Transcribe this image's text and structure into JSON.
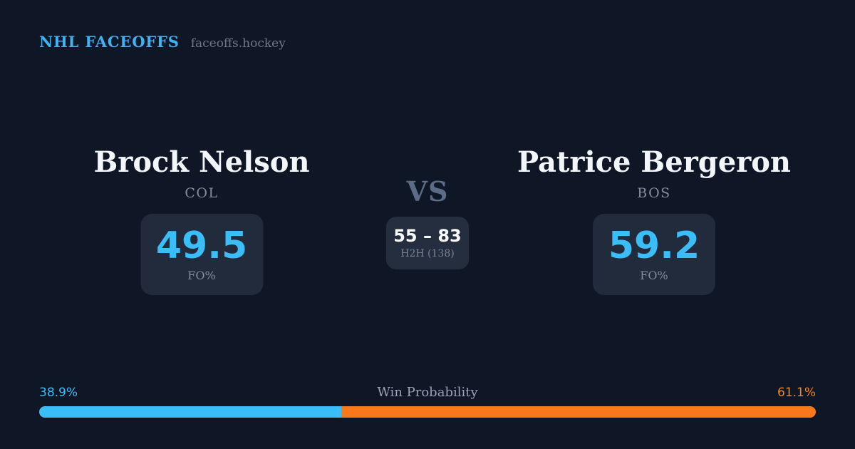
{
  "header": {
    "brand": "NHL FACEOFFS",
    "site": "faceoffs.hockey"
  },
  "players": {
    "left": {
      "name": "Brock Nelson",
      "team": "COL",
      "stat_value": "49.5",
      "stat_label": "FO%"
    },
    "right": {
      "name": "Patrice Bergeron",
      "team": "BOS",
      "stat_value": "59.2",
      "stat_label": "FO%"
    }
  },
  "versus": {
    "label": "VS",
    "h2h_score": "55 – 83",
    "h2h_label": "H2H (138)"
  },
  "win_probability": {
    "title": "Win Probability",
    "left_pct_label": "38.9%",
    "right_pct_label": "61.1%",
    "left_value": 38.9,
    "right_value": 61.1
  },
  "colors": {
    "background": "#0f1726",
    "panel": "#212b3c",
    "panel_h2h": "#242e3f",
    "accent_blue": "#3bbdf8",
    "accent_orange": "#f8791a",
    "brand_blue": "#41b2ee",
    "text_primary": "#f3f6f9",
    "text_muted": "#828d9e",
    "vs_gray": "#5b6c86"
  }
}
